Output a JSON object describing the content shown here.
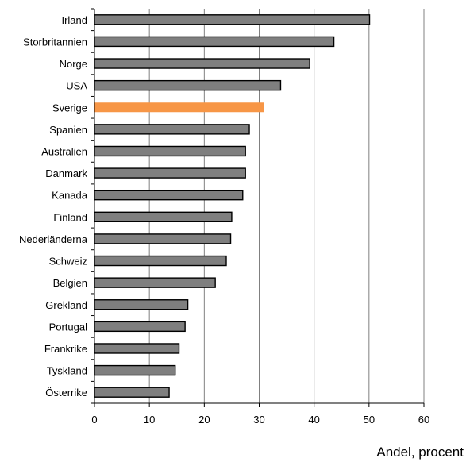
{
  "chart_data": {
    "type": "bar",
    "orientation": "horizontal",
    "categories": [
      "Irland",
      "Storbritannien",
      "Norge",
      "USA",
      "Sverige",
      "Spanien",
      "Australien",
      "Danmark",
      "Kanada",
      "Finland",
      "Nederländerna",
      "Schweiz",
      "Belgien",
      "Grekland",
      "Portugal",
      "Frankrike",
      "Tyskland",
      "Österrike"
    ],
    "values": [
      50.1,
      43.6,
      39.2,
      33.9,
      30.9,
      28.2,
      27.5,
      27.5,
      27.0,
      25.0,
      24.8,
      24.0,
      22.0,
      17.0,
      16.5,
      15.4,
      14.7,
      13.6
    ],
    "highlight": "Sverige",
    "xlabel": "Andel, procent",
    "xlim": [
      0,
      60
    ],
    "xticks": [
      0,
      10,
      20,
      30,
      40,
      50,
      60
    ],
    "grid": "vertical",
    "legend": "none",
    "colors": {
      "bar": "#7f7f7f",
      "bar_border": "#000000",
      "highlight": "#f79646",
      "grid": "#808080",
      "axis": "#000000"
    }
  }
}
